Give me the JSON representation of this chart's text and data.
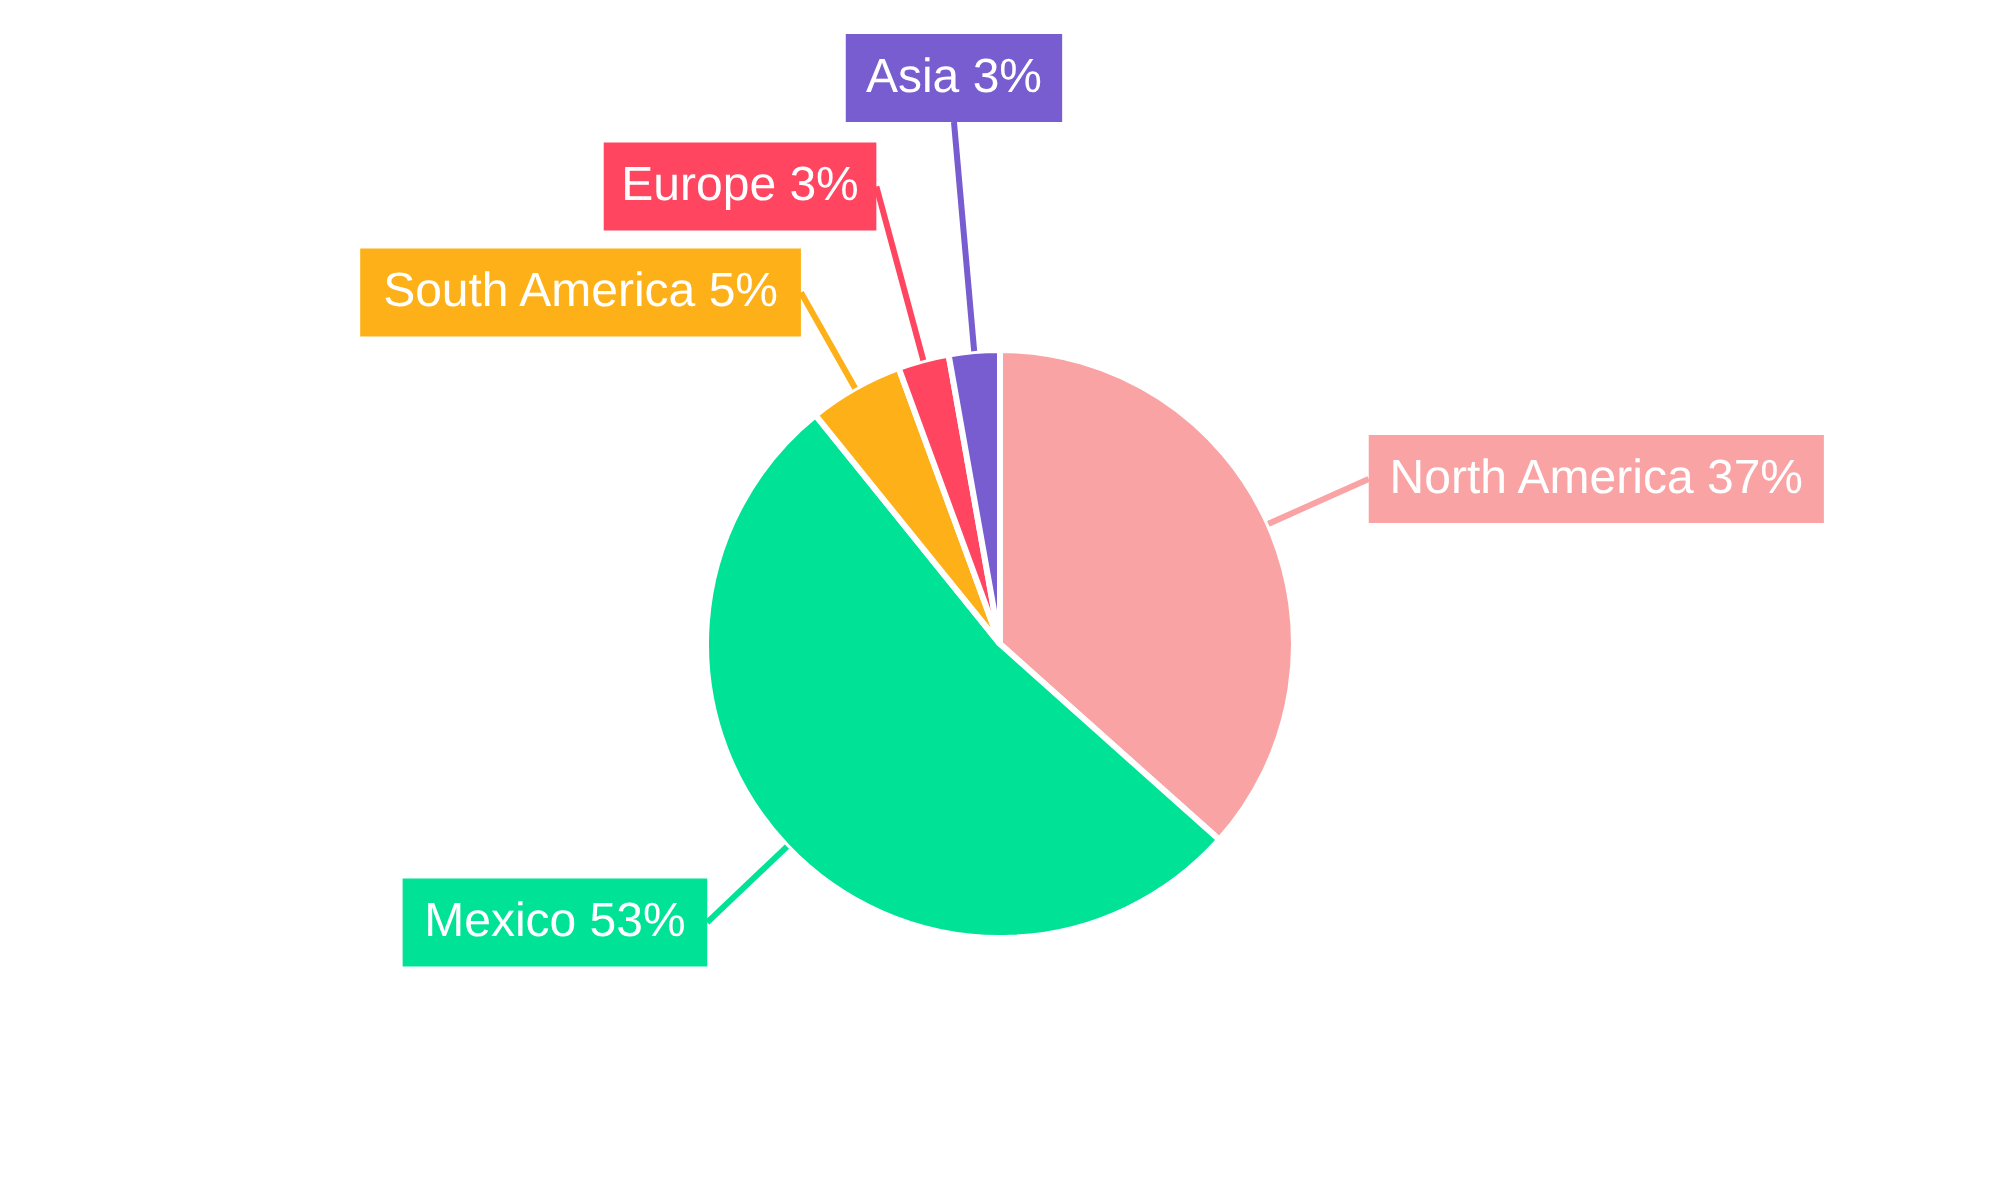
{
  "chart_data": {
    "type": "pie",
    "categories": [
      "North America",
      "Mexico",
      "South America",
      "Europe",
      "Asia"
    ],
    "values": [
      36.6,
      52.6,
      5.2,
      2.8,
      2.8
    ],
    "value_labels": [
      "37%",
      "53%",
      "5%",
      "3%",
      "3%"
    ],
    "colors": [
      "#f9a3a4",
      "#00e396",
      "#feb019",
      "#ff4560",
      "#775dd0"
    ]
  }
}
